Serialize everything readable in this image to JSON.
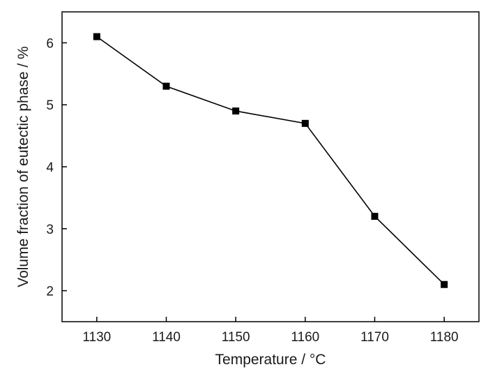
{
  "chart_data": {
    "type": "line",
    "title": "",
    "xlabel": "Temperature / °C",
    "ylabel": "Volume fraction of eutectic phase / %",
    "xlim": [
      1125,
      1185
    ],
    "ylim": [
      1.5,
      6.5
    ],
    "xticks": [
      1130,
      1140,
      1150,
      1160,
      1170,
      1180
    ],
    "yticks": [
      2,
      3,
      4,
      5,
      6
    ],
    "grid": false,
    "legend": "none",
    "series": [
      {
        "marker": "square",
        "color": "#000000",
        "x": [
          1130,
          1140,
          1150,
          1160,
          1170,
          1180
        ],
        "y": [
          6.1,
          5.3,
          4.9,
          4.7,
          3.2,
          2.1
        ]
      }
    ]
  }
}
